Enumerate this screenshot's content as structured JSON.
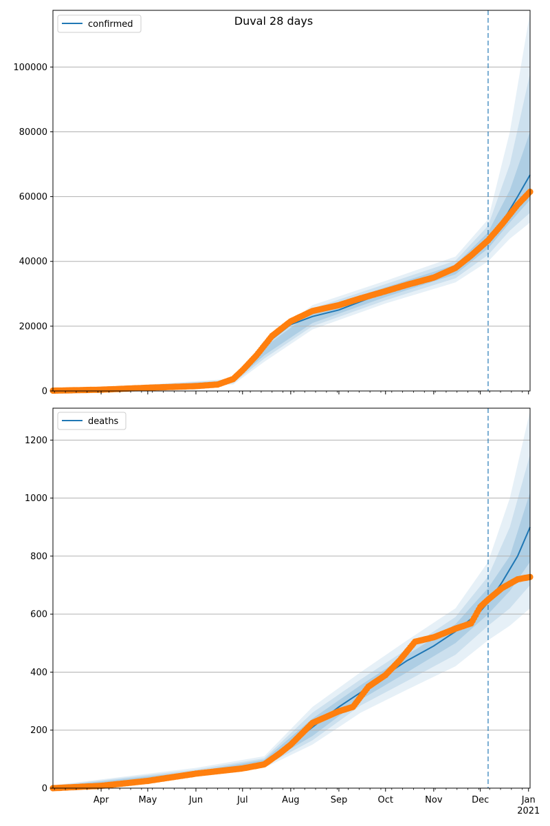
{
  "figure": {
    "title": "Duval 28 days",
    "colors": {
      "model": "#1f77b4",
      "observed": "#ff7f0e",
      "band": "#1f77b4",
      "grid": "#b0b0b0",
      "forecast_line": "#1f77b4"
    }
  },
  "chart_data": [
    {
      "type": "line",
      "panel": "top",
      "title": "Duval 28 days",
      "legend": {
        "entries": [
          "confirmed"
        ],
        "placement": "top-left"
      },
      "xlim": [
        "2020-03-01",
        "2021-01-02"
      ],
      "ylim": [
        0,
        117500
      ],
      "yticks": [
        0,
        20000,
        40000,
        60000,
        80000,
        100000
      ],
      "ytick_labels": [
        "0",
        "20000",
        "40000",
        "60000",
        "80000",
        "100000"
      ],
      "grid": "y",
      "forecast_start": "2020-12-06",
      "series": [
        {
          "name": "confirmed",
          "kind": "model",
          "x": [
            "2020-03-01",
            "2020-04-01",
            "2020-05-01",
            "2020-06-01",
            "2020-06-25",
            "2020-07-01",
            "2020-07-10",
            "2020-07-20",
            "2020-08-01",
            "2020-08-15",
            "2020-09-01",
            "2020-09-15",
            "2020-10-01",
            "2020-10-15",
            "2020-11-01",
            "2020-11-15",
            "2020-11-25",
            "2020-12-06",
            "2020-12-15",
            "2020-12-25",
            "2021-01-02"
          ],
          "y": [
            0,
            300,
            900,
            1500,
            3000,
            5600,
            10000,
            16000,
            20500,
            23000,
            25000,
            27600,
            30600,
            33000,
            35300,
            38500,
            42000,
            46500,
            52000,
            60000,
            66700
          ]
        },
        {
          "name": "confirmed",
          "kind": "observed",
          "x": [
            "2020-03-01",
            "2020-04-01",
            "2020-05-01",
            "2020-06-01",
            "2020-06-15",
            "2020-06-25",
            "2020-07-01",
            "2020-07-10",
            "2020-07-20",
            "2020-08-01",
            "2020-08-15",
            "2020-09-01",
            "2020-09-15",
            "2020-10-01",
            "2020-10-15",
            "2020-11-01",
            "2020-11-15",
            "2020-11-25",
            "2020-12-06",
            "2020-12-15",
            "2020-12-25",
            "2021-01-02"
          ],
          "y": [
            100,
            400,
            1000,
            1500,
            2000,
            3700,
            6400,
            11000,
            17000,
            21500,
            24700,
            26500,
            28600,
            30800,
            32800,
            35000,
            38000,
            41800,
            46500,
            51500,
            57500,
            61500
          ]
        }
      ],
      "bands": [
        {
          "x": [
            "2020-03-01",
            "2020-06-25",
            "2020-07-15",
            "2020-08-15",
            "2020-10-01",
            "2020-11-15",
            "2020-12-06",
            "2020-12-20",
            "2021-01-02"
          ],
          "lower": [
            0,
            2000,
            9000,
            19000,
            27000,
            33500,
            40000,
            47000,
            52000
          ],
          "upper": [
            0,
            3800,
            15500,
            26500,
            34000,
            41500,
            53000,
            80000,
            117000
          ]
        },
        {
          "x": [
            "2020-03-01",
            "2020-06-25",
            "2020-07-15",
            "2020-08-15",
            "2020-10-01",
            "2020-11-15",
            "2020-12-06",
            "2020-12-20",
            "2021-01-02"
          ],
          "lower": [
            0,
            2400,
            10000,
            20000,
            28000,
            34800,
            42000,
            49500,
            55000
          ],
          "upper": [
            0,
            3500,
            14500,
            25500,
            33000,
            40200,
            51000,
            70000,
            98000
          ]
        },
        {
          "x": [
            "2020-03-01",
            "2020-06-25",
            "2020-07-15",
            "2020-08-15",
            "2020-10-01",
            "2020-11-15",
            "2020-12-06",
            "2020-12-20",
            "2021-01-02"
          ],
          "lower": [
            0,
            2700,
            11000,
            21000,
            29000,
            36000,
            44000,
            52000,
            59000
          ],
          "upper": [
            0,
            3200,
            13500,
            24500,
            32000,
            39000,
            49000,
            62000,
            80000
          ]
        }
      ]
    },
    {
      "type": "line",
      "panel": "bottom",
      "legend": {
        "entries": [
          "deaths"
        ],
        "placement": "top-left"
      },
      "xlim": [
        "2020-03-01",
        "2021-01-02"
      ],
      "ylim": [
        0,
        1310
      ],
      "yticks": [
        0,
        200,
        400,
        600,
        800,
        1000,
        1200
      ],
      "ytick_labels": [
        "0",
        "200",
        "400",
        "600",
        "800",
        "1000",
        "1200"
      ],
      "xticks": [
        "2020-04-01",
        "2020-05-01",
        "2020-06-01",
        "2020-07-01",
        "2020-08-01",
        "2020-09-01",
        "2020-10-01",
        "2020-11-01",
        "2020-12-01",
        "2021-01-01"
      ],
      "xtick_labels": [
        "Apr",
        "May",
        "Jun",
        "Jul",
        "Aug",
        "Sep",
        "Oct",
        "Nov",
        "Dec",
        "Jan"
      ],
      "xtick_sublabel": "2021",
      "grid": "y",
      "forecast_start": "2020-12-06",
      "series": [
        {
          "name": "deaths",
          "kind": "model",
          "x": [
            "2020-03-01",
            "2020-04-01",
            "2020-05-01",
            "2020-06-01",
            "2020-07-01",
            "2020-07-15",
            "2020-08-01",
            "2020-08-15",
            "2020-09-01",
            "2020-09-15",
            "2020-10-01",
            "2020-10-15",
            "2020-11-01",
            "2020-11-15",
            "2020-12-01",
            "2020-12-06",
            "2020-12-15",
            "2020-12-25",
            "2021-01-02"
          ],
          "y": [
            0,
            10,
            30,
            50,
            65,
            90,
            150,
            210,
            280,
            330,
            390,
            440,
            490,
            540,
            610,
            640,
            710,
            800,
            900
          ]
        },
        {
          "name": "deaths",
          "kind": "observed",
          "x": [
            "2020-03-01",
            "2020-04-01",
            "2020-05-01",
            "2020-06-01",
            "2020-07-01",
            "2020-07-15",
            "2020-07-25",
            "2020-08-01",
            "2020-08-15",
            "2020-09-01",
            "2020-09-10",
            "2020-09-20",
            "2020-10-01",
            "2020-10-10",
            "2020-10-20",
            "2020-11-01",
            "2020-11-15",
            "2020-11-25",
            "2020-12-01",
            "2020-12-06",
            "2020-12-15",
            "2020-12-25",
            "2021-01-02"
          ],
          "y": [
            0,
            8,
            25,
            50,
            68,
            82,
            120,
            150,
            225,
            265,
            280,
            350,
            390,
            440,
            505,
            520,
            550,
            568,
            625,
            650,
            690,
            720,
            728
          ]
        }
      ],
      "bands": [
        {
          "x": [
            "2020-03-01",
            "2020-06-01",
            "2020-07-15",
            "2020-08-15",
            "2020-09-15",
            "2020-10-15",
            "2020-11-15",
            "2020-12-06",
            "2020-12-20",
            "2021-01-02"
          ],
          "lower": [
            0,
            40,
            70,
            150,
            260,
            340,
            420,
            510,
            560,
            620
          ],
          "upper": [
            10,
            70,
            110,
            280,
            400,
            510,
            620,
            780,
            1000,
            1300
          ]
        },
        {
          "x": [
            "2020-03-01",
            "2020-06-01",
            "2020-07-15",
            "2020-08-15",
            "2020-09-15",
            "2020-10-15",
            "2020-11-15",
            "2020-12-06",
            "2020-12-20",
            "2021-01-02"
          ],
          "lower": [
            0,
            44,
            76,
            165,
            285,
            370,
            460,
            560,
            620,
            700
          ],
          "upper": [
            8,
            64,
            103,
            260,
            375,
            480,
            590,
            730,
            900,
            1150
          ]
        },
        {
          "x": [
            "2020-03-01",
            "2020-06-01",
            "2020-07-15",
            "2020-08-15",
            "2020-09-15",
            "2020-10-15",
            "2020-11-15",
            "2020-12-06",
            "2020-12-20",
            "2021-01-02"
          ],
          "lower": [
            0,
            47,
            82,
            180,
            305,
            400,
            500,
            600,
            680,
            780
          ],
          "upper": [
            6,
            58,
            98,
            240,
            355,
            460,
            565,
            690,
            800,
            1020
          ]
        }
      ]
    }
  ]
}
